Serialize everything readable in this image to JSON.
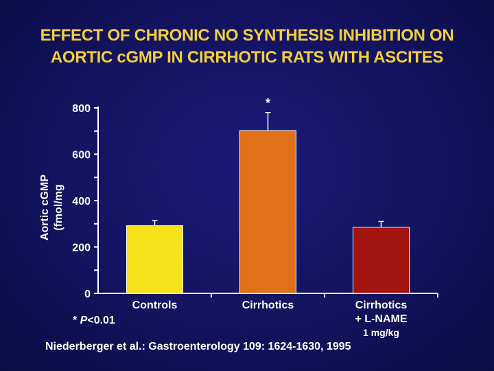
{
  "title_lines": [
    "EFFECT OF CHRONIC NO SYNTHESIS INHIBITION ON",
    "AORTIC cGMP IN CIRRHOTIC RATS WITH ASCITES"
  ],
  "footnote": "* P<0.01",
  "citation": "Niederberger et al.: Gastroenterology 109: 1624-1630, 1995",
  "colors": {
    "background": "#13135f",
    "title": "#f2cf3a",
    "axis": "#ffffff",
    "text": "#ffffff"
  },
  "chart_data": {
    "type": "bar",
    "title": "EFFECT OF CHRONIC NO SYNTHESIS INHIBITION ON AORTIC cGMP IN CIRRHOTIC RATS WITH ASCITES",
    "ylabel_lines": [
      "Aortic cGMP",
      "(fmol/mg"
    ],
    "xlabel": "",
    "ylim": [
      0,
      800
    ],
    "yticks": [
      0,
      200,
      400,
      600,
      800
    ],
    "grid": false,
    "categories": [
      {
        "lines": [
          "Controls"
        ]
      },
      {
        "lines": [
          "Cirrhotics"
        ]
      },
      {
        "lines": [
          "Cirrhotics",
          "+ L-NAME",
          "1 mg/kg"
        ]
      }
    ],
    "values": [
      292,
      702,
      285
    ],
    "errors": [
      22,
      78,
      25
    ],
    "significance": [
      "",
      "*",
      ""
    ],
    "bar_colors": [
      "#f7e21a",
      "#e0701a",
      "#a3140e"
    ]
  }
}
